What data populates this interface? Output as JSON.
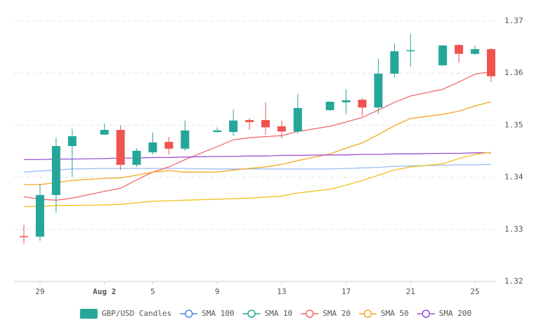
{
  "chart_data": {
    "type": "candlestick",
    "x": [
      "Jul 28",
      "Jul 29",
      "Jul 30",
      "Jul 31",
      "Aug 2",
      "Aug 3",
      "Aug 4",
      "Aug 5",
      "Aug 6",
      "Aug 7",
      "Aug 9",
      "Aug 10",
      "Aug 11",
      "Aug 12",
      "Aug 13",
      "Aug 14",
      "Aug 16",
      "Aug 17",
      "Aug 18",
      "Aug 19",
      "Aug 20",
      "Aug 21",
      "Aug 23",
      "Aug 24",
      "Aug 25",
      "Aug 26"
    ],
    "candles": {
      "name": "GBP/USD Candles",
      "up_color": "#26a69a",
      "down_color": "#ef5350",
      "open": [
        1.3287,
        1.3286,
        1.3366,
        1.346,
        1.3482,
        1.3491,
        1.3424,
        1.3448,
        1.3468,
        1.3455,
        1.3487,
        1.3487,
        1.351,
        1.351,
        1.3498,
        1.3488,
        1.3529,
        1.3544,
        1.3549,
        1.3534,
        1.3599,
        1.3642,
        1.3615,
        1.3654,
        1.3637,
        1.3646
      ],
      "high": [
        1.3309,
        1.3387,
        1.3476,
        1.3493,
        1.3503,
        1.35,
        1.3456,
        1.3486,
        1.3478,
        1.3509,
        1.3496,
        1.353,
        1.3514,
        1.3544,
        1.3509,
        1.356,
        1.3546,
        1.3569,
        1.3552,
        1.3627,
        1.3657,
        1.3676,
        1.3654,
        1.3656,
        1.3653,
        1.3648
      ],
      "low": [
        1.3273,
        1.3278,
        1.3332,
        1.3401,
        1.3482,
        1.3414,
        1.342,
        1.3444,
        1.3444,
        1.3451,
        1.3486,
        1.348,
        1.3491,
        1.3482,
        1.3475,
        1.3484,
        1.3528,
        1.3521,
        1.3518,
        1.3522,
        1.3592,
        1.3612,
        1.3614,
        1.362,
        1.3635,
        1.3583
      ],
      "close": [
        1.3286,
        1.3366,
        1.346,
        1.3479,
        1.3491,
        1.3424,
        1.3451,
        1.3467,
        1.3455,
        1.349,
        1.349,
        1.3509,
        1.3506,
        1.3496,
        1.3488,
        1.3533,
        1.3545,
        1.3548,
        1.3534,
        1.3599,
        1.3642,
        1.3644,
        1.3653,
        1.3637,
        1.3646,
        1.3594
      ]
    },
    "series": [
      {
        "name": "SMA 100",
        "color": "#4a86e8",
        "line_color": "#9cbff5",
        "values": [
          1.341,
          1.3412,
          1.3414,
          1.3416,
          1.3417,
          1.3417,
          1.3417,
          1.3417,
          1.3417,
          1.3417,
          1.3416,
          1.3416,
          1.3416,
          1.3416,
          1.3416,
          1.3416,
          1.3416,
          1.3417,
          1.3418,
          1.3419,
          1.3421,
          1.3422,
          1.3423,
          1.3424,
          1.3424,
          1.3425
        ]
      },
      {
        "name": "SMA 10",
        "color": "#26a69a",
        "values": [
          null,
          null,
          null,
          null,
          null,
          null,
          null,
          null,
          null,
          null,
          null,
          null,
          null,
          null,
          null,
          null,
          null,
          null,
          null,
          null,
          null,
          null,
          null,
          null,
          null,
          null
        ]
      },
      {
        "name": "SMA 20",
        "color": "#ef6b6b",
        "values": [
          1.3363,
          1.3358,
          1.3356,
          1.336,
          1.3373,
          1.3379,
          1.3395,
          1.341,
          1.342,
          1.3434,
          1.3459,
          1.3472,
          1.3476,
          1.3478,
          1.348,
          1.3488,
          1.3498,
          1.3506,
          1.3515,
          1.3529,
          1.3544,
          1.3556,
          1.3569,
          1.3583,
          1.3598,
          1.3603
        ]
      },
      {
        "name": "SMA 50",
        "color": "#f5a623",
        "values": [
          1.3386,
          1.3386,
          1.339,
          1.3394,
          1.3398,
          1.3399,
          1.3404,
          1.341,
          1.3413,
          1.341,
          1.341,
          1.3414,
          1.3417,
          1.342,
          1.3425,
          1.3432,
          1.3445,
          1.3456,
          1.3466,
          1.3482,
          1.3499,
          1.3513,
          1.3521,
          1.3527,
          1.3537,
          1.3545
        ]
      },
      {
        "name": "SMA 200",
        "color": "#9c4fd6",
        "values": [
          1.3434,
          1.3434,
          1.3435,
          1.3435,
          1.3436,
          1.3437,
          1.3437,
          1.3438,
          1.3438,
          1.3439,
          1.344,
          1.344,
          1.3441,
          1.3441,
          1.3442,
          1.3442,
          1.3443,
          1.3443,
          1.3444,
          1.3444,
          1.3445,
          1.3445,
          1.3446,
          1.3446,
          1.3447,
          1.3447
        ]
      },
      {
        "color": "#f0c419",
        "values": [
          1.3344,
          1.3344,
          1.3346,
          1.3346,
          1.3347,
          1.3348,
          1.3351,
          1.3354,
          1.3355,
          1.3356,
          1.3358,
          1.3359,
          1.336,
          1.3362,
          1.3364,
          1.337,
          1.3377,
          1.3385,
          1.3394,
          1.3404,
          1.3414,
          1.342,
          1.3426,
          1.3436,
          1.3444,
          1.3448
        ]
      }
    ],
    "ylim": [
      1.32,
      1.37
    ],
    "yticks": [
      1.32,
      1.33,
      1.34,
      1.35,
      1.36,
      1.37
    ],
    "xticks": [
      {
        "value": "Jul 29",
        "label": "29"
      },
      {
        "value": "Aug 2",
        "label": "Aug 2"
      },
      {
        "value": "Aug 5",
        "label": "5"
      },
      {
        "value": "Aug 9",
        "label": "9"
      },
      {
        "value": "Aug 13",
        "label": "13"
      },
      {
        "value": "Aug 17",
        "label": "17"
      },
      {
        "value": "Aug 21",
        "label": "21"
      },
      {
        "value": "Aug 25",
        "label": "25"
      }
    ],
    "grid": true
  }
}
